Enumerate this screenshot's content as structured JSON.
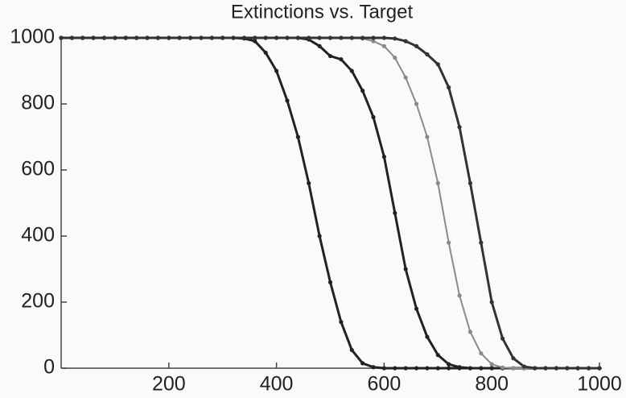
{
  "chart_data": {
    "type": "line",
    "title": "Extinctions vs. Target",
    "x": [
      0,
      20,
      40,
      60,
      80,
      100,
      120,
      140,
      160,
      180,
      200,
      220,
      240,
      260,
      280,
      300,
      320,
      340,
      360,
      380,
      400,
      420,
      440,
      460,
      480,
      500,
      520,
      540,
      560,
      580,
      600,
      620,
      640,
      660,
      680,
      700,
      720,
      740,
      760,
      780,
      800,
      820,
      840,
      860,
      880,
      900,
      920,
      940,
      960,
      980,
      1000
    ],
    "series": [
      {
        "color": "#222222",
        "values": [
          1000,
          1000,
          1000,
          1000,
          1000,
          1000,
          1000,
          1000,
          1000,
          1000,
          1000,
          1000,
          1000,
          1000,
          1000,
          1000,
          1000,
          998,
          990,
          955,
          900,
          810,
          700,
          560,
          400,
          260,
          140,
          55,
          15,
          3,
          0,
          0,
          0,
          0,
          0,
          0,
          0,
          0,
          0,
          0,
          0,
          0,
          0,
          0,
          0,
          0,
          0,
          0,
          0,
          0,
          0
        ]
      },
      {
        "color": "#222222",
        "values": [
          1000,
          1000,
          1000,
          1000,
          1000,
          1000,
          1000,
          1000,
          1000,
          1000,
          1000,
          1000,
          1000,
          1000,
          1000,
          1000,
          1000,
          1000,
          1000,
          1000,
          1000,
          1000,
          1000,
          995,
          975,
          945,
          935,
          900,
          840,
          760,
          640,
          470,
          300,
          180,
          95,
          40,
          12,
          3,
          0,
          0,
          0,
          0,
          0,
          0,
          0,
          0,
          0,
          0,
          0,
          0,
          0
        ]
      },
      {
        "color": "#8a8a8a",
        "values": [
          1000,
          1000,
          1000,
          1000,
          1000,
          1000,
          1000,
          1000,
          1000,
          1000,
          1000,
          1000,
          1000,
          1000,
          1000,
          1000,
          1000,
          1000,
          1000,
          1000,
          1000,
          1000,
          1000,
          1000,
          1000,
          1000,
          1000,
          1000,
          998,
          990,
          975,
          940,
          880,
          800,
          700,
          560,
          380,
          220,
          110,
          45,
          12,
          2,
          0,
          0,
          0,
          0,
          0,
          0,
          0,
          0,
          0
        ]
      },
      {
        "color": "#333333",
        "values": [
          1000,
          1000,
          1000,
          1000,
          1000,
          1000,
          1000,
          1000,
          1000,
          1000,
          1000,
          1000,
          1000,
          1000,
          1000,
          1000,
          1000,
          1000,
          1000,
          1000,
          1000,
          1000,
          1000,
          1000,
          1000,
          1000,
          1000,
          1000,
          1000,
          1000,
          1000,
          998,
          990,
          975,
          950,
          920,
          850,
          730,
          560,
          380,
          200,
          90,
          30,
          5,
          0,
          0,
          0,
          0,
          0,
          0,
          0
        ]
      }
    ],
    "xlim": [
      0,
      1000
    ],
    "xticks": [
      200,
      400,
      600,
      800,
      1000
    ],
    "ylim": [
      0,
      1000
    ],
    "yticks": [
      0,
      200,
      400,
      600,
      800,
      1000
    ]
  }
}
